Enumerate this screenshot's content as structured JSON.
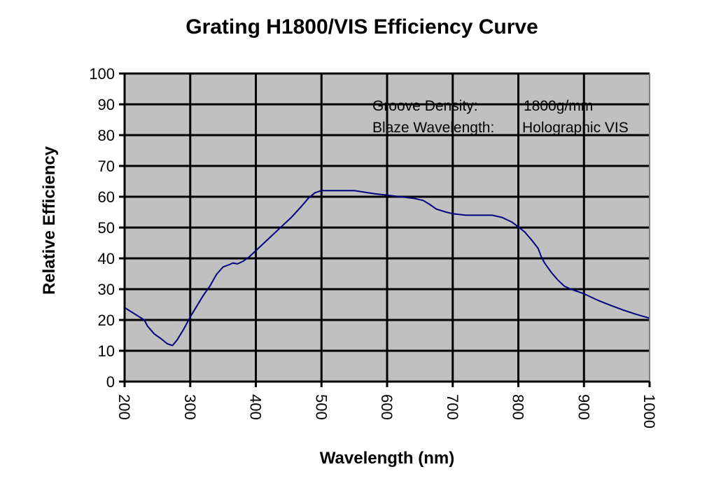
{
  "chart_data": {
    "type": "line",
    "title": "Grating H1800/VIS Efficiency Curve",
    "xlabel": "Wavelength (nm)",
    "ylabel": "Relative Efficiency",
    "xlim": [
      200,
      1000
    ],
    "ylim": [
      0,
      100
    ],
    "xticks": [
      200,
      300,
      400,
      500,
      600,
      700,
      800,
      900,
      1000
    ],
    "yticks": [
      0,
      10,
      20,
      30,
      40,
      50,
      60,
      70,
      80,
      90,
      100
    ],
    "grid": true,
    "annotations": [
      {
        "label": "Groove Density:",
        "value": "1800g/mm"
      },
      {
        "label": "Blaze Wavelength:",
        "value": "Holographic VIS"
      }
    ],
    "series": [
      {
        "name": "Efficiency",
        "color": "#00007f",
        "x": [
          200,
          215,
          230,
          235,
          245,
          255,
          265,
          273,
          280,
          290,
          300,
          310,
          320,
          330,
          340,
          350,
          360,
          365,
          372,
          380,
          390,
          400,
          420,
          440,
          455,
          470,
          480,
          490,
          500,
          520,
          550,
          580,
          600,
          620,
          640,
          655,
          665,
          675,
          690,
          700,
          720,
          740,
          760,
          775,
          790,
          800,
          810,
          820,
          830,
          835,
          840,
          850,
          860,
          870,
          880,
          900,
          920,
          940,
          960,
          980,
          1000
        ],
        "y": [
          24,
          22,
          20,
          18,
          15.5,
          14,
          12.3,
          11.7,
          13.5,
          17,
          21,
          24.5,
          28,
          31,
          34.8,
          37.2,
          38,
          38.5,
          38.2,
          39,
          40.5,
          42.5,
          46.5,
          50.5,
          53.5,
          57,
          59.5,
          61.3,
          62,
          62,
          62,
          61,
          60.5,
          60,
          59.5,
          58.8,
          57.5,
          56,
          55,
          54.5,
          54,
          54,
          54,
          53.3,
          51.8,
          50.2,
          48.5,
          46,
          43.3,
          40.5,
          38.5,
          35.5,
          33,
          31,
          30,
          28.5,
          26.5,
          24.8,
          23.2,
          21.8,
          20.6
        ]
      }
    ]
  }
}
